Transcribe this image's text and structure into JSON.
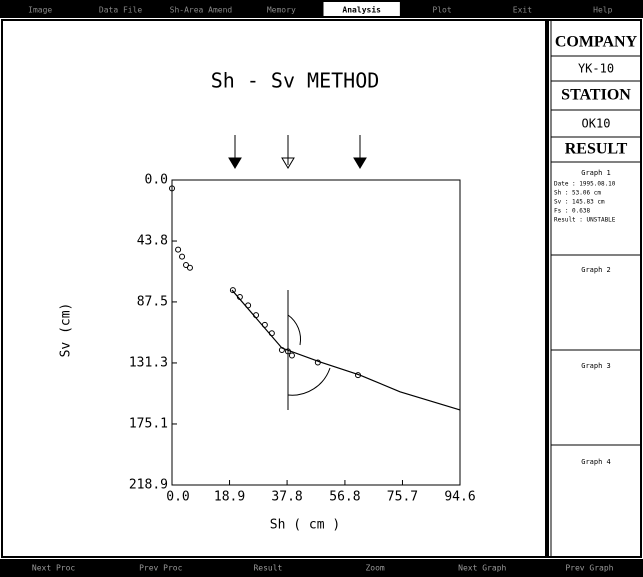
{
  "menu": [
    "Image",
    "Data File",
    "Sh-Area Amend",
    "Memory",
    "Analysis",
    "Plot",
    "Exit",
    "Help"
  ],
  "active_menu": "Analysis",
  "chart_data": {
    "type": "scatter",
    "title": "Sh - Sv METHOD",
    "x_label": "Sh ( cm )",
    "y_label": "Sv (cm)",
    "xlim": [
      0,
      94.6
    ],
    "xticks": [
      {
        "value": 0,
        "label": "0.0"
      },
      18.9,
      37.8,
      56.8,
      75.7,
      94.6
    ],
    "ylim": [
      0,
      218.9
    ],
    "yticks": [
      {
        "value": 0,
        "label": "0.0"
      },
      43.8,
      87.5,
      131.3,
      175.1,
      218.9
    ],
    "y_inverted": true,
    "series": [
      {
        "color": "#000000",
        "style": "points",
        "x": [
          0,
          2,
          3.3,
          4.6,
          5.9,
          20.0,
          22.3,
          25,
          27.6,
          30.5,
          32.8,
          36.1,
          38.1,
          39.4,
          47.9,
          61.1
        ],
        "values": [
          6,
          50,
          55,
          61,
          63,
          79,
          84,
          90,
          97,
          104,
          110,
          122,
          123,
          126,
          131,
          140
        ]
      },
      {
        "color": "#000000",
        "style": "line",
        "x": [
          19.7,
          36.1,
          48.6,
          61.7,
          74.9,
          94.6
        ],
        "values": [
          79,
          120.6,
          130.6,
          140,
          152,
          165
        ]
      }
    ]
  },
  "panel": {
    "company_label": "COMPANY",
    "company": "YK-10",
    "station_label": "STATION",
    "station": "OK10",
    "result_label": "RESULT",
    "graph1": [
      "Graph 1",
      "Date : 1995.08.10",
      "Sh : 53.06 cm",
      "Sv : 145.83 cm",
      "Fs : 0.638",
      "Result : UNSTABLE"
    ],
    "graph2": "Graph 2",
    "graph3": "Graph 3",
    "graph4": "Graph 4"
  },
  "footer": [
    "Next Proc",
    "Prev Proc",
    "Result",
    "Zoom",
    "Next Graph",
    "Prev Graph"
  ]
}
